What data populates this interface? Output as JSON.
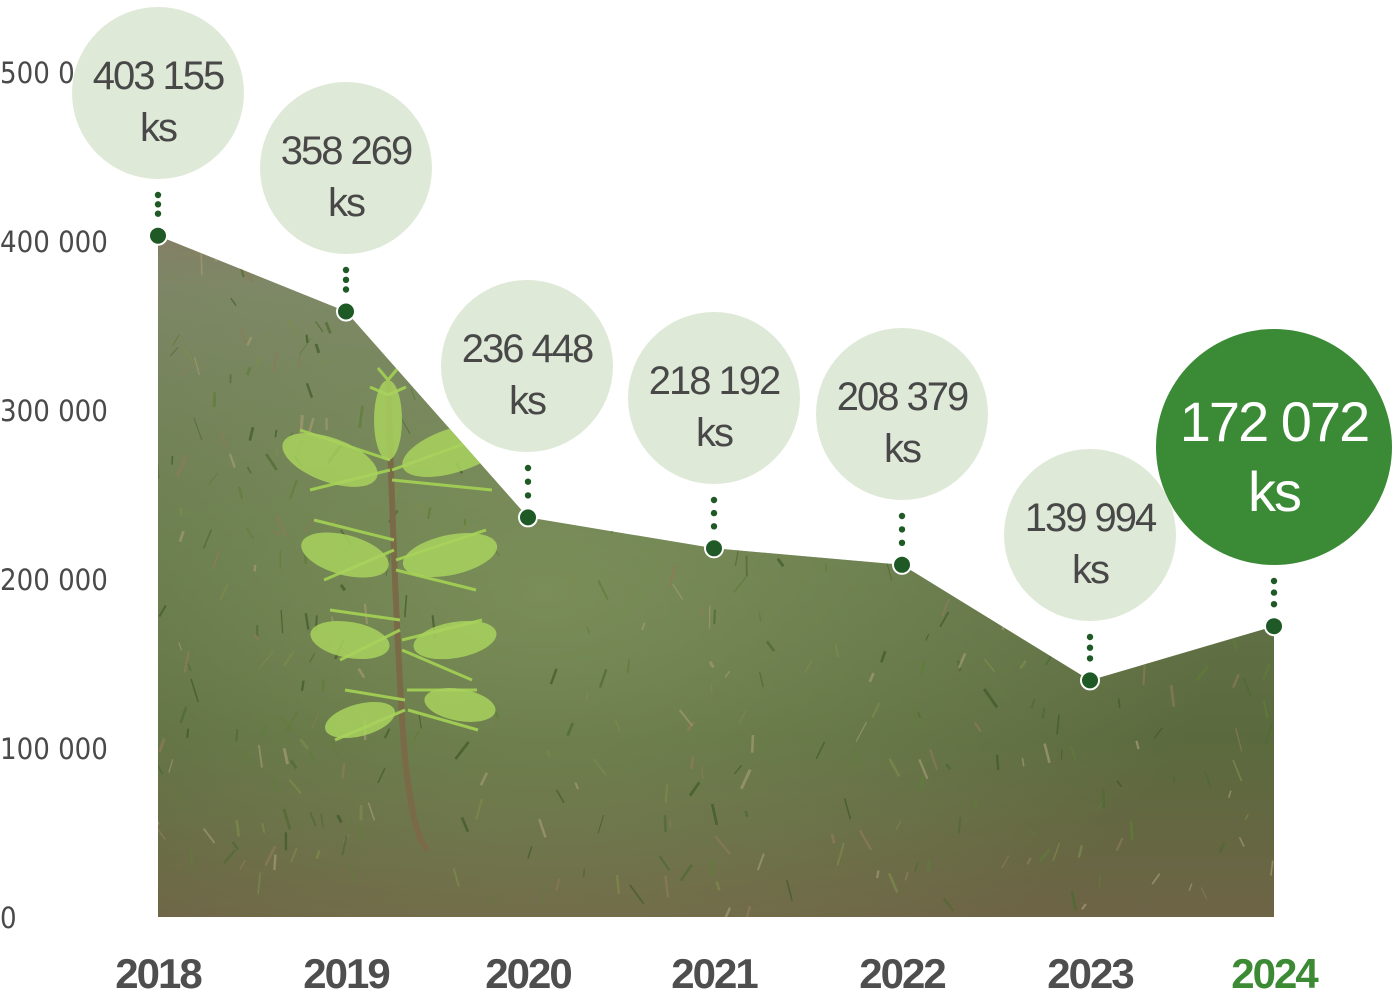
{
  "chart_data": {
    "type": "area",
    "categories": [
      "2018",
      "2019",
      "2020",
      "2021",
      "2022",
      "2023",
      "2024"
    ],
    "values": [
      403155,
      358269,
      236448,
      218192,
      208379,
      139994,
      172072
    ],
    "labels": [
      "403 155",
      "358 269",
      "236 448",
      "218 192",
      "208 379",
      "139 994",
      "172 072"
    ],
    "unit": "ks",
    "y_ticks": [
      "0",
      "100 000",
      "200 000",
      "300 000",
      "400 000",
      "500 000"
    ],
    "ylim": [
      0,
      500000
    ],
    "highlight": "2024",
    "grid": false,
    "colors": {
      "bubble": "#dfe9d7",
      "bubble_highlight": "#3b8a35",
      "dot": "#1f5a26",
      "year_highlight": "#3d8a35"
    }
  }
}
